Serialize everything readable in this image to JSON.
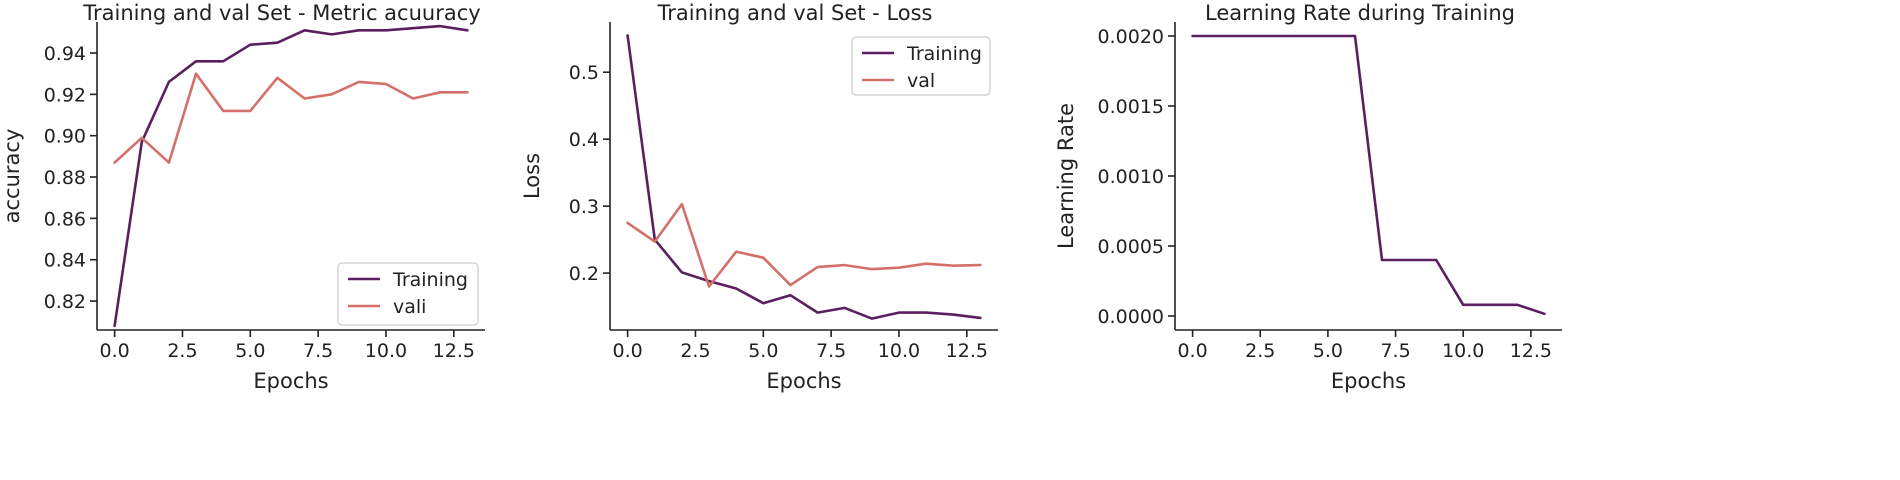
{
  "chart_data": [
    {
      "type": "line",
      "title": "Training and val Set - Metric acuuracy",
      "xlabel": "Epochs",
      "ylabel": "accuracy",
      "xlim": [
        -0.65,
        13.65
      ],
      "ylim": [
        0.806,
        0.955
      ],
      "xticks": [
        0,
        2.5,
        5,
        7.5,
        10,
        12.5
      ],
      "xtick_labels": [
        "0.0",
        "2.5",
        "5.0",
        "7.5",
        "10.0",
        "12.5"
      ],
      "yticks": [
        0.82,
        0.84,
        0.86,
        0.88,
        0.9,
        0.92,
        0.94
      ],
      "ytick_labels": [
        "0.82",
        "0.84",
        "0.86",
        "0.88",
        "0.90",
        "0.92",
        "0.94"
      ],
      "legend_position": "lower-right",
      "series": [
        {
          "name": "Training",
          "color": "#5b1f5f",
          "x": [
            0,
            1,
            2,
            3,
            4,
            5,
            6,
            7,
            8,
            9,
            10,
            11,
            12,
            13
          ],
          "y": [
            0.808,
            0.897,
            0.926,
            0.936,
            0.936,
            0.944,
            0.945,
            0.951,
            0.949,
            0.951,
            0.951,
            0.952,
            0.953,
            0.951
          ]
        },
        {
          "name": "vali",
          "color": "#d4706a",
          "x": [
            0,
            1,
            2,
            3,
            4,
            5,
            6,
            7,
            8,
            9,
            10,
            11,
            12,
            13
          ],
          "y": [
            0.887,
            0.899,
            0.887,
            0.93,
            0.912,
            0.912,
            0.928,
            0.918,
            0.92,
            0.926,
            0.925,
            0.918,
            0.921,
            0.921
          ]
        }
      ]
    },
    {
      "type": "line",
      "title": "Training and val Set - Loss",
      "xlabel": "Epochs",
      "ylabel": "Loss",
      "xlim": [
        -0.65,
        13.65
      ],
      "ylim": [
        0.115,
        0.575
      ],
      "xticks": [
        0,
        2.5,
        5,
        7.5,
        10,
        12.5
      ],
      "xtick_labels": [
        "0.0",
        "2.5",
        "5.0",
        "7.5",
        "10.0",
        "12.5"
      ],
      "yticks": [
        0.2,
        0.3,
        0.4,
        0.5
      ],
      "ytick_labels": [
        "0.2",
        "0.3",
        "0.4",
        "0.5"
      ],
      "legend_position": "upper-right",
      "series": [
        {
          "name": "Training",
          "color": "#5b1f5f",
          "x": [
            0,
            1,
            2,
            3,
            4,
            5,
            6,
            7,
            8,
            9,
            10,
            11,
            12,
            13
          ],
          "y": [
            0.555,
            0.25,
            0.201,
            0.188,
            0.177,
            0.155,
            0.167,
            0.141,
            0.148,
            0.132,
            0.141,
            0.141,
            0.138,
            0.133
          ]
        },
        {
          "name": "val",
          "color": "#d4706a",
          "x": [
            0,
            1,
            2,
            3,
            4,
            5,
            6,
            7,
            8,
            9,
            10,
            11,
            12,
            13
          ],
          "y": [
            0.275,
            0.247,
            0.303,
            0.18,
            0.232,
            0.223,
            0.182,
            0.209,
            0.212,
            0.206,
            0.208,
            0.214,
            0.211,
            0.212
          ]
        }
      ]
    },
    {
      "type": "line",
      "title": "Learning Rate during Training",
      "xlabel": "Epochs",
      "ylabel": "Learning Rate",
      "xlim": [
        -0.65,
        13.65
      ],
      "ylim": [
        -0.0001,
        0.0021
      ],
      "xticks": [
        0,
        2.5,
        5,
        7.5,
        10,
        12.5
      ],
      "xtick_labels": [
        "0.0",
        "2.5",
        "5.0",
        "7.5",
        "10.0",
        "12.5"
      ],
      "yticks": [
        0,
        0.0005,
        0.001,
        0.0015,
        0.002
      ],
      "ytick_labels": [
        "0.0000",
        "0.0005",
        "0.0010",
        "0.0015",
        "0.0020"
      ],
      "series": [
        {
          "name": "Learning Rate",
          "color": "#5b1f5f",
          "x": [
            0,
            1,
            2,
            3,
            4,
            5,
            6,
            7,
            8,
            9,
            10,
            11,
            12,
            13
          ],
          "y": [
            0.002,
            0.002,
            0.002,
            0.002,
            0.002,
            0.002,
            0.002,
            0.0004,
            0.0004,
            0.0004,
            8e-05,
            8e-05,
            8e-05,
            1.6e-05
          ]
        }
      ]
    }
  ]
}
